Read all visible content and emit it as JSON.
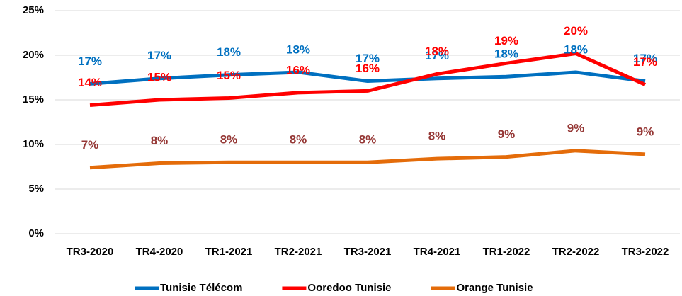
{
  "chart_data": {
    "type": "line",
    "categories": [
      "TR3-2020",
      "TR4-2020",
      "TR1-2021",
      "TR2-2021",
      "TR3-2021",
      "TR4-2021",
      "TR1-2022",
      "TR2-2022",
      "TR3-2022"
    ],
    "series": [
      {
        "name": "Tunisie Télécom",
        "color": "#0070c0",
        "label_color": "#0070c0",
        "values": [
          16.8,
          17.4,
          17.8,
          18.1,
          17.1,
          17.4,
          17.6,
          18.1,
          17.1
        ],
        "value_labels": [
          "17%",
          "17%",
          "18%",
          "18%",
          "17%",
          "17%",
          "18%",
          "18%",
          "17%"
        ]
      },
      {
        "name": "Ooredoo Tunisie",
        "color": "#ff0000",
        "label_color": "#ff0000",
        "values": [
          14.4,
          15.0,
          15.2,
          15.8,
          16.0,
          17.9,
          19.1,
          20.2,
          16.7
        ],
        "value_labels": [
          "14%",
          "15%",
          "15%",
          "16%",
          "16%",
          "18%",
          "19%",
          "20%",
          "17%"
        ]
      },
      {
        "name": "Orange Tunisie",
        "color": "#e46c0a",
        "label_color": "#953735",
        "values": [
          7.4,
          7.9,
          8.0,
          8.0,
          8.0,
          8.4,
          8.6,
          9.3,
          8.9
        ],
        "value_labels": [
          "7%",
          "8%",
          "8%",
          "8%",
          "8%",
          "8%",
          "9%",
          "9%",
          "9%"
        ]
      }
    ],
    "ylim": [
      0,
      25
    ],
    "yticks": [
      {
        "value": 0,
        "label": "0%"
      },
      {
        "value": 5,
        "label": "5%"
      },
      {
        "value": 10,
        "label": "10%"
      },
      {
        "value": 15,
        "label": "15%"
      },
      {
        "value": 20,
        "label": "20%"
      },
      {
        "value": 25,
        "label": "25%"
      }
    ],
    "grid": true,
    "legend": "bottom"
  }
}
